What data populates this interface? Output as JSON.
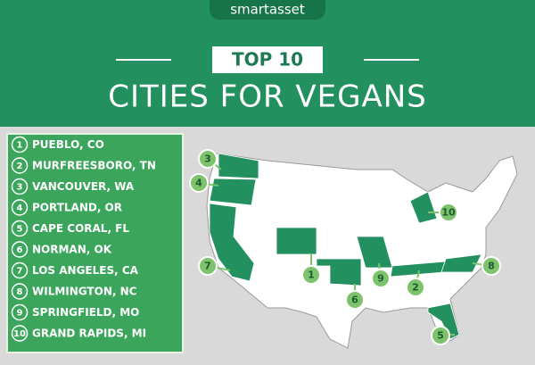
{
  "brand": "smartasset",
  "header": {
    "badge": "TOP 10",
    "title": "CITIES FOR VEGANS"
  },
  "list": [
    {
      "rank": "1",
      "city": "PUEBLO, CO"
    },
    {
      "rank": "2",
      "city": "MURFREESBORO, TN"
    },
    {
      "rank": "3",
      "city": "VANCOUVER, WA"
    },
    {
      "rank": "4",
      "city": "PORTLAND, OR"
    },
    {
      "rank": "5",
      "city": "CAPE CORAL, FL"
    },
    {
      "rank": "6",
      "city": "NORMAN, OK"
    },
    {
      "rank": "7",
      "city": "LOS ANGELES, CA"
    },
    {
      "rank": "8",
      "city": "WILMINGTON, NC"
    },
    {
      "rank": "9",
      "city": "SPRINGFIELD, MO"
    },
    {
      "rank": "10",
      "city": "GRAND RAPIDS, MI"
    }
  ]
}
